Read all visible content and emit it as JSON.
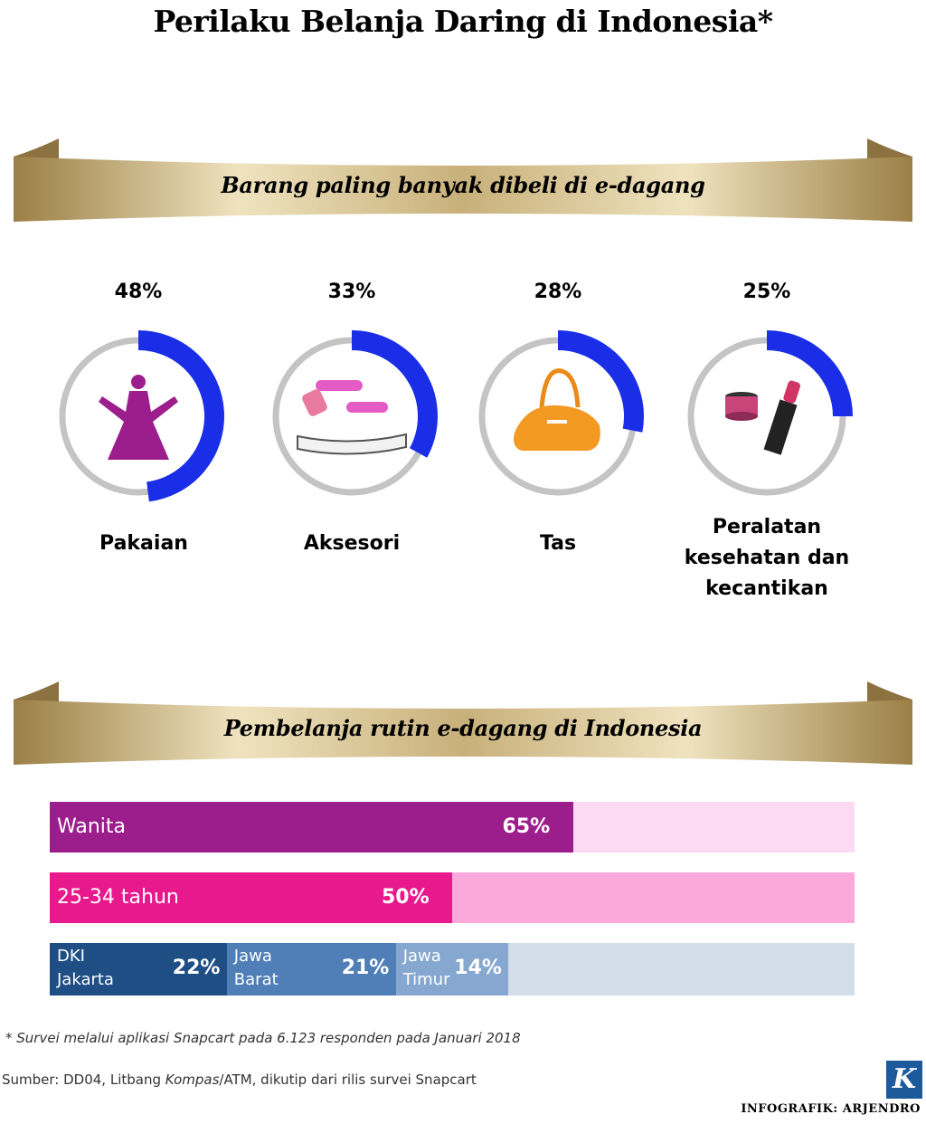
{
  "title": "Perilaku Belanja Daring di Indonesia*",
  "colors": {
    "gold_light": "#e8d9b0",
    "gold_dark": "#a98d53",
    "ring_grey": "#c4c4c4",
    "arc_blue": "#1a2ee8"
  },
  "section1": {
    "heading": "Barang paling banyak dibeli di e-dagang"
  },
  "section2": {
    "heading": "Pembelanja rutin e-dagang di Indonesia"
  },
  "chart_data": [
    {
      "type": "donut",
      "categories": [
        "Pakaian",
        "Aksesori",
        "Tas",
        "Peralatan kesehatan dan kecantikan"
      ],
      "values": [
        48,
        33,
        28,
        25
      ],
      "value_labels": [
        "48%",
        "33%",
        "28%",
        "25%"
      ],
      "label_lines": [
        [
          "Pakaian"
        ],
        [
          "Aksesori"
        ],
        [
          "Tas"
        ],
        [
          "Peralatan",
          "kesehatan dan",
          "kecantikan"
        ]
      ],
      "icons": [
        "dress-icon",
        "accessories-icon",
        "handbag-icon",
        "cosmetics-icon"
      ],
      "max": 100
    },
    {
      "type": "bar",
      "orientation": "horizontal",
      "bars": [
        {
          "label": "Wanita",
          "value": 65,
          "value_label": "65%",
          "color": "#9c1e8c",
          "bg": "#fcdaf4"
        },
        {
          "label": "25-34 tahun",
          "value": 50,
          "value_label": "50%",
          "color": "#e8198c",
          "bg": "#fba8da"
        }
      ],
      "stacked": {
        "bg": "#d3deea",
        "segments": [
          {
            "label_lines": [
              "DKI",
              "Jakarta"
            ],
            "value": 22,
            "value_label": "22%",
            "color": "#1f4e85"
          },
          {
            "label_lines": [
              "Jawa",
              "Barat"
            ],
            "value": 21,
            "value_label": "21%",
            "color": "#4f7fb6"
          },
          {
            "label_lines": [
              "Jawa",
              "Timur"
            ],
            "value": 14,
            "value_label": "14%",
            "color": "#86a8d0"
          }
        ]
      },
      "max": 100
    }
  ],
  "footer": {
    "note": "* Survei melalui aplikasi Snapcart pada 6.123 responden pada Januari 2018",
    "source_prefix": "Sumber: DD04, Litbang ",
    "source_italic": "Kompas",
    "source_suffix": "/ATM, dikutip dari rilis survei Snapcart",
    "logo_letter": "K",
    "credit": "INFOGRAFIK: ARJENDRO"
  }
}
